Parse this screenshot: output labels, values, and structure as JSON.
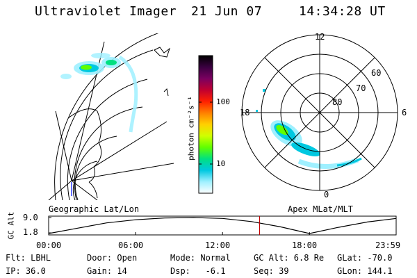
{
  "header": {
    "instrument": "Ultraviolet Imager",
    "date": "21 Jun 07",
    "time": "14:34:28 UT"
  },
  "maps": {
    "left_label": "Geographic Lat/Lon",
    "right_label": "Apex MLat/MLT"
  },
  "colorbar": {
    "label": "photon cm⁻²s⁻¹",
    "ticks": [
      "100",
      "10"
    ],
    "scale": "log",
    "colors": [
      "#000000",
      "#3a0040",
      "#7a0060",
      "#c00030",
      "#ff2000",
      "#ff8000",
      "#ffd000",
      "#d0ff00",
      "#60ff00",
      "#00e080",
      "#00c8e0",
      "#9ff0ff",
      "#ffffff"
    ]
  },
  "polar": {
    "mlt_labels": [
      "12",
      "18",
      "6",
      "0"
    ],
    "mlat_labels": [
      "60",
      "70",
      "80"
    ]
  },
  "timeline": {
    "ylabel": "GC Alt",
    "ytick_top": "9.0",
    "ytick_bottom": "1.8",
    "xticks": [
      "00:00",
      "06:00",
      "12:00",
      "18:00",
      "23:59"
    ],
    "current_time_frac": 0.607
  },
  "info": {
    "flt": "Flt: LBHL",
    "ip": "IP: 36.0",
    "door": "Door: Open",
    "gain": "Gain: 14",
    "mode": "Mode: Normal",
    "dsp": "Dsp:   -6.1",
    "gcalt": "GC Alt: 6.8 Re",
    "seq": "Seq: 39",
    "glat": "GLat: -70.0",
    "glon": "GLon: 144.1"
  },
  "chart_data": {
    "type": "line",
    "title": "",
    "xlabel": "",
    "ylabel": "GC Alt",
    "x": [
      "00:00",
      "02:00",
      "04:00",
      "06:00",
      "08:00",
      "10:00",
      "12:00",
      "14:00",
      "16:00",
      "18:00",
      "20:00",
      "22:00",
      "23:59"
    ],
    "series": [
      {
        "values": [
          1.8,
          4.2,
          6.6,
          8.0,
          8.8,
          9.0,
          8.6,
          7.2,
          4.8,
          1.8,
          4.6,
          7.0,
          8.6
        ]
      }
    ],
    "ylim": [
      1.8,
      9.0
    ],
    "xlim": [
      "00:00",
      "23:59"
    ],
    "marker_time": "14:34"
  }
}
